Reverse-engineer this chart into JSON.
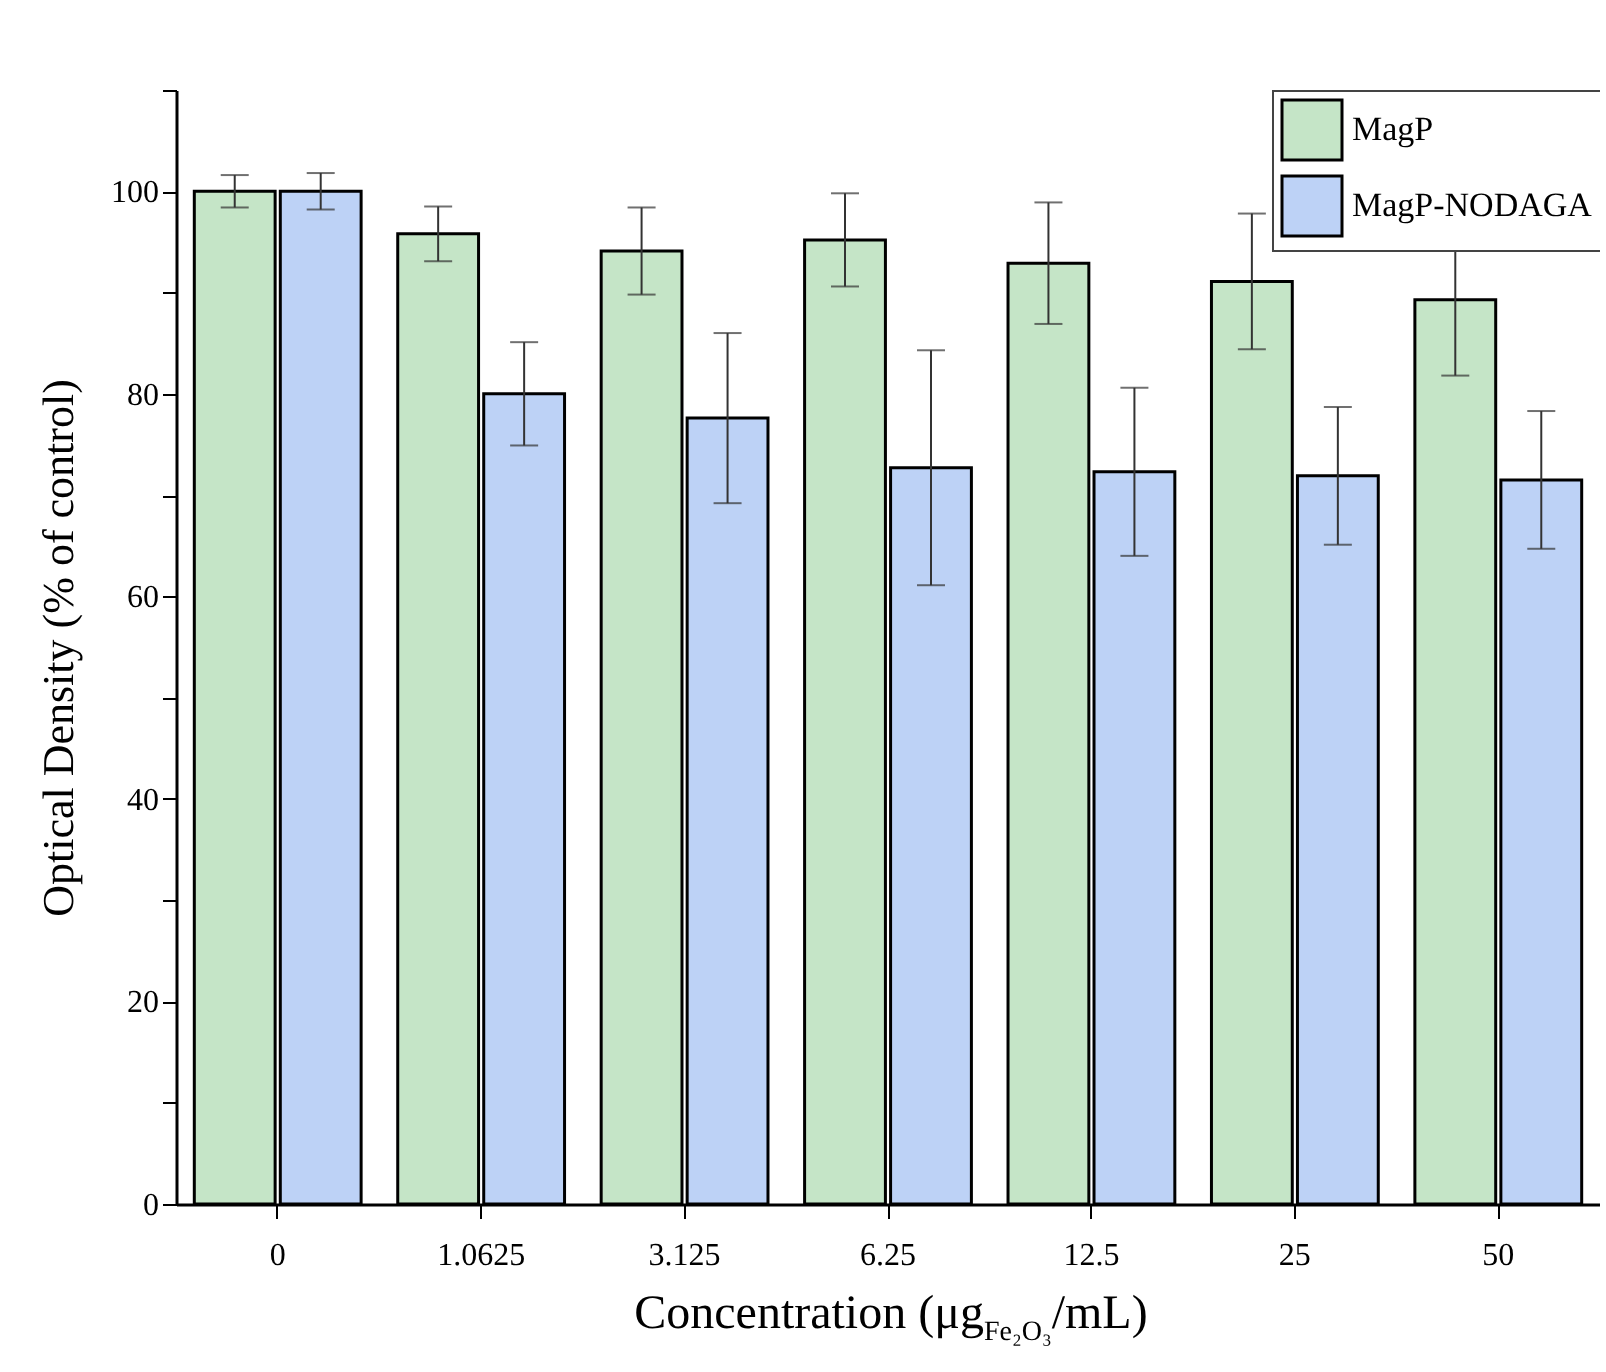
{
  "chart_data": {
    "type": "bar",
    "xlabel": "Concentration (μg$_{Fe₂O₃}$/mL)",
    "ylabel": "Optical Density (% of control)",
    "categories": [
      "0",
      "1.0625",
      "3.125",
      "6.25",
      "12.5",
      "25",
      "50"
    ],
    "series": [
      {
        "name": "MagP",
        "color": "#c5e5c7",
        "values": [
          100,
          95.8,
          94.1,
          95.2,
          92.9,
          91.1,
          89.3
        ],
        "errors": [
          1.6,
          2.7,
          4.3,
          4.6,
          6.0,
          6.7,
          7.5
        ]
      },
      {
        "name": "MagP-NODAGA",
        "color": "#bdd2f6",
        "values": [
          100,
          80.0,
          77.6,
          72.7,
          72.3,
          71.9,
          71.5
        ],
        "errors": [
          1.8,
          5.1,
          8.4,
          11.6,
          8.3,
          6.8,
          6.8
        ]
      }
    ],
    "ylim": [
      0,
      110
    ],
    "yticks": [
      0,
      {
        "value": 10,
        "label": null
      },
      20,
      {
        "value": 30,
        "label": null
      },
      40,
      {
        "value": 50,
        "label": null
      },
      60,
      {
        "value": 70,
        "label": null
      },
      80,
      {
        "value": 90,
        "label": null
      },
      100,
      {
        "value": 110,
        "label": null
      }
    ],
    "grid": false,
    "legend": "top right"
  }
}
